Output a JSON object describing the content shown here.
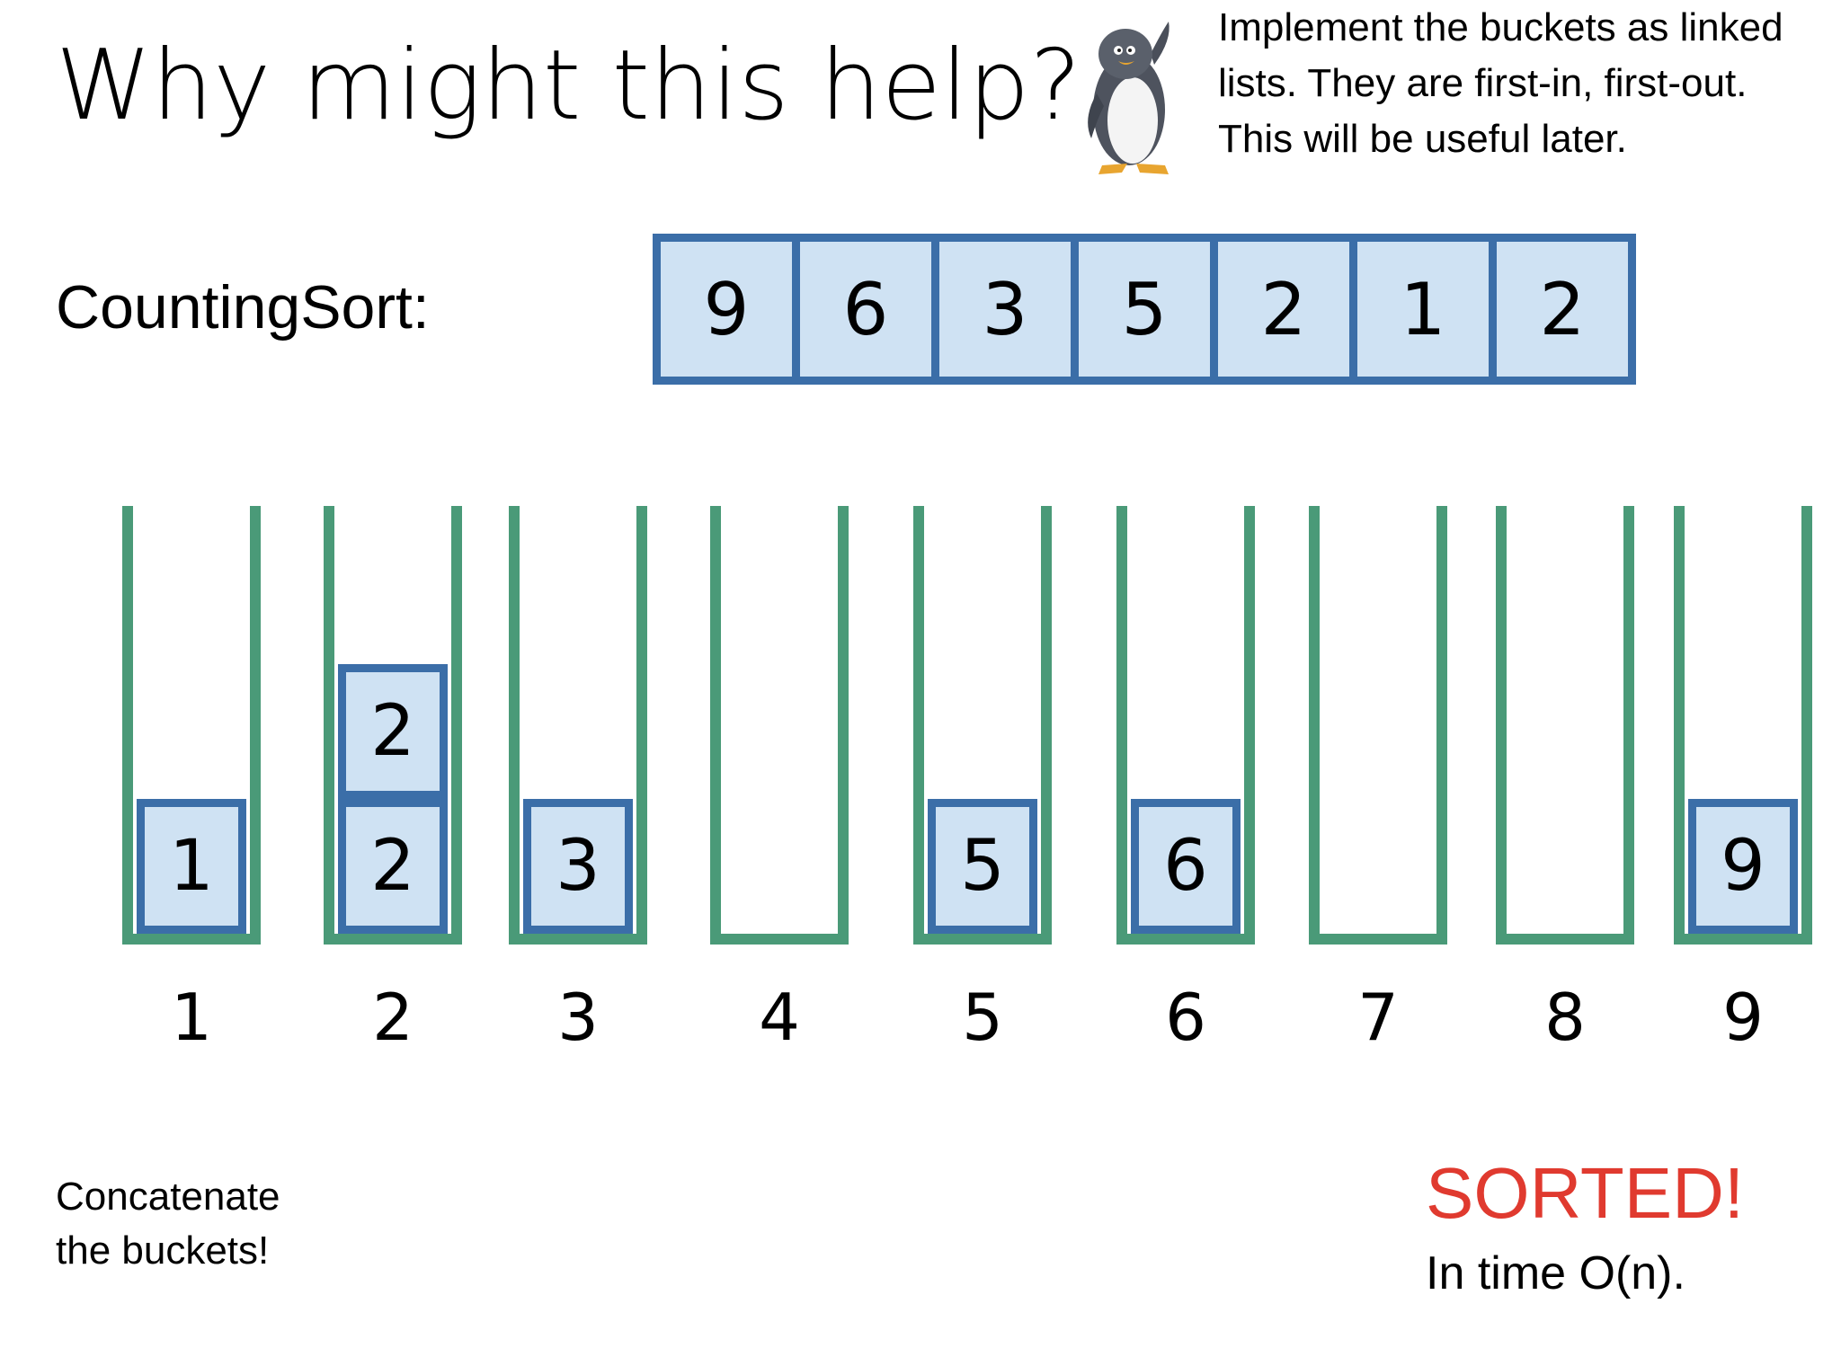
{
  "title": "Why might this help?",
  "note": {
    "lines": [
      "Implement the buckets as linked",
      "lists.  They are first-in, first-out.",
      "This will be useful later."
    ],
    "icon": "penguin-icon"
  },
  "counting_sort_label": "CountingSort:",
  "input_array": [
    "9",
    "6",
    "3",
    "5",
    "2",
    "1",
    "2"
  ],
  "buckets": [
    {
      "label": "1",
      "items": [
        "1"
      ]
    },
    {
      "label": "2",
      "items": [
        "2",
        "2"
      ]
    },
    {
      "label": "3",
      "items": [
        "3"
      ]
    },
    {
      "label": "4",
      "items": []
    },
    {
      "label": "5",
      "items": [
        "5"
      ]
    },
    {
      "label": "6",
      "items": [
        "6"
      ]
    },
    {
      "label": "7",
      "items": []
    },
    {
      "label": "8",
      "items": []
    },
    {
      "label": "9",
      "items": [
        "9"
      ]
    }
  ],
  "concat_note": [
    "Concatenate",
    "the buckets!"
  ],
  "sorted_text": "SORTED!",
  "time_text": "In time O(n).",
  "colors": {
    "cell_fill": "#cfe2f3",
    "cell_border": "#3b6ea8",
    "bucket": "#4a9a78",
    "sorted": "#e03a2f"
  }
}
